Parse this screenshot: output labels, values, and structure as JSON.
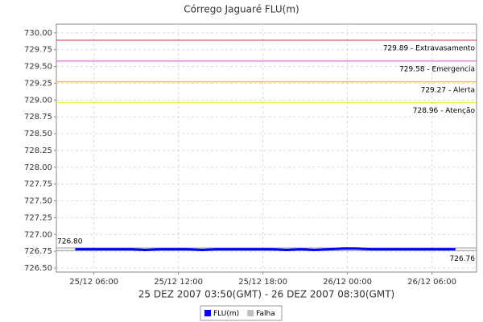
{
  "chart_data": {
    "type": "line",
    "title": "Córrego Jaguaré FLU(m)",
    "x_label": "25 DEZ 2007 03:50(GMT) - 26 DEZ 2007 08:30(GMT)",
    "x": [
      "2007-12-25T04:40",
      "2007-12-25T05:40",
      "2007-12-25T06:40",
      "2007-12-25T07:40",
      "2007-12-25T08:40",
      "2007-12-25T09:40",
      "2007-12-25T10:40",
      "2007-12-25T11:40",
      "2007-12-25T12:40",
      "2007-12-25T13:40",
      "2007-12-25T14:40",
      "2007-12-25T15:40",
      "2007-12-25T16:40",
      "2007-12-25T17:40",
      "2007-12-25T18:40",
      "2007-12-25T19:40",
      "2007-12-25T20:40",
      "2007-12-25T21:40",
      "2007-12-25T22:40",
      "2007-12-25T23:40",
      "2007-12-26T00:40",
      "2007-12-26T01:40",
      "2007-12-26T02:40",
      "2007-12-26T03:40",
      "2007-12-26T04:40",
      "2007-12-26T05:40",
      "2007-12-26T06:40",
      "2007-12-26T07:40"
    ],
    "series": [
      {
        "name": "FLU(m)",
        "color": "#0000ff",
        "values": [
          726.78,
          726.78,
          726.78,
          726.78,
          726.78,
          726.77,
          726.78,
          726.78,
          726.78,
          726.77,
          726.78,
          726.78,
          726.78,
          726.78,
          726.78,
          726.77,
          726.78,
          726.77,
          726.78,
          726.79,
          726.79,
          726.78,
          726.78,
          726.78,
          726.78,
          726.78,
          726.78,
          726.78
        ]
      },
      {
        "name": "Falha",
        "color": "#c0c0c0",
        "values": [
          null,
          null,
          null,
          null,
          null,
          null,
          null,
          null,
          null,
          null,
          null,
          null,
          null,
          null,
          null,
          null,
          null,
          null,
          null,
          null,
          null,
          null,
          null,
          null,
          null,
          null,
          null,
          null
        ]
      }
    ],
    "thresholds": [
      {
        "value": 729.89,
        "label": "729.89 - Extravasamento",
        "color": "#cc3333"
      },
      {
        "value": 729.58,
        "label": "729.58 - Emergencia",
        "color": "#dd44dd"
      },
      {
        "value": 729.27,
        "label": "729.27 - Alerta",
        "color": "#f0a020"
      },
      {
        "value": 728.96,
        "label": "728.96 - Atenção",
        "color": "#f0e040"
      }
    ],
    "range_markers": [
      {
        "value": 726.8,
        "label": "726.80",
        "color": "#999999"
      },
      {
        "value": 726.76,
        "label": "726.76",
        "color": "#999999"
      }
    ],
    "xlim": [
      "2007-12-25T03:20",
      "2007-12-26T09:10"
    ],
    "xticks": [
      {
        "value": "2007-12-25T06:00",
        "label": "25/12 06:00"
      },
      {
        "value": "2007-12-25T12:00",
        "label": "25/12 12:00"
      },
      {
        "value": "2007-12-25T18:00",
        "label": "25/12 18:00"
      },
      {
        "value": "2007-12-26T00:00",
        "label": "26/12 00:00"
      },
      {
        "value": "2007-12-26T06:00",
        "label": "26/12 06:00"
      }
    ],
    "ylim": [
      726.44,
      730.13
    ],
    "yticks": [
      {
        "value": 726.5,
        "label": "726.50"
      },
      {
        "value": 726.75,
        "label": "726.75"
      },
      {
        "value": 727,
        "label": "727.00"
      },
      {
        "value": 727.25,
        "label": "727.25"
      },
      {
        "value": 727.5,
        "label": "727.50"
      },
      {
        "value": 727.75,
        "label": "727.75"
      },
      {
        "value": 728,
        "label": "728.00"
      },
      {
        "value": 728.25,
        "label": "728.25"
      },
      {
        "value": 728.5,
        "label": "728.50"
      },
      {
        "value": 728.75,
        "label": "728.75"
      },
      {
        "value": 729,
        "label": "729.00"
      },
      {
        "value": 729.25,
        "label": "729.25"
      },
      {
        "value": 729.5,
        "label": "729.50"
      },
      {
        "value": 729.75,
        "label": "729.75"
      },
      {
        "value": 730,
        "label": "730.00"
      }
    ],
    "grid": true
  }
}
